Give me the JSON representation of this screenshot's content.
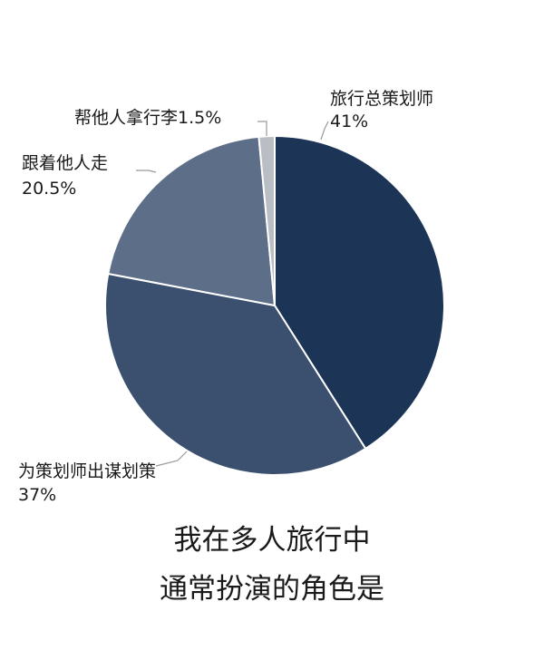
{
  "chart_data": {
    "type": "pie",
    "title_lines": [
      "我在多人旅行中",
      "通常扮演的角色是"
    ],
    "start_angle_deg": 0,
    "direction": "clockwise",
    "slices": [
      {
        "name": "旅行总策划师",
        "value": 41,
        "label": "41%",
        "color": "#1c3557"
      },
      {
        "name": "为策划师出谋划策",
        "value": 37,
        "label": "37%",
        "color": "#3b4f6e"
      },
      {
        "name": "跟着他人走",
        "value": 20.5,
        "label": "20.5%",
        "color": "#5d6e88"
      },
      {
        "name": "帮他人拿行李",
        "value": 1.5,
        "label": "1.5%",
        "color": "#b9bdc4"
      }
    ]
  }
}
